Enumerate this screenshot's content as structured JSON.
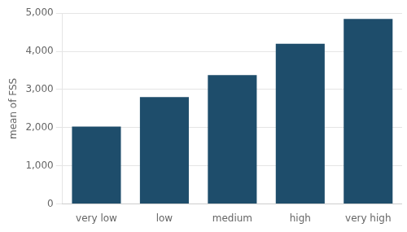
{
  "chart_data": {
    "type": "bar",
    "categories": [
      "very low",
      "low",
      "medium",
      "high",
      "very high"
    ],
    "values": [
      2030,
      2800,
      3380,
      4200,
      4850
    ],
    "color": "#1e4d6b",
    "ylabel": "mean of FSS",
    "ylim": [
      0,
      5000
    ],
    "yticks": [
      0,
      {
        "value": 1000,
        "label": "1,000"
      },
      {
        "value": 2000,
        "label": "2,000"
      },
      {
        "value": 3000,
        "label": "3,000"
      },
      {
        "value": 4000,
        "label": "4,000"
      },
      {
        "value": 5000,
        "label": "5,000"
      }
    ],
    "grid": true
  }
}
